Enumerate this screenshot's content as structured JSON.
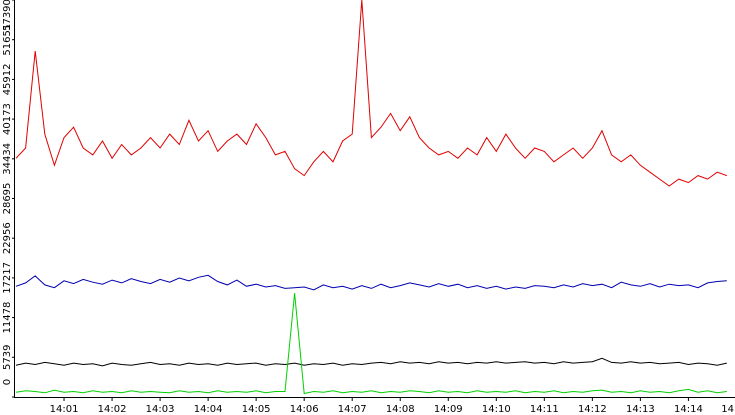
{
  "chart_data": {
    "type": "line",
    "x": [
      0,
      0.2,
      0.4,
      0.6,
      0.8,
      1,
      1.2,
      1.4,
      1.6,
      1.8,
      2,
      2.2,
      2.4,
      2.6,
      2.8,
      3,
      3.2,
      3.4,
      3.6,
      3.8,
      4,
      4.2,
      4.4,
      4.6,
      4.8,
      5,
      5.2,
      5.4,
      5.6,
      5.8,
      6,
      6.2,
      6.4,
      6.6,
      6.8,
      7,
      7.2,
      7.4,
      7.6,
      7.8,
      8,
      8.2,
      8.4,
      8.6,
      8.8,
      9,
      9.2,
      9.4,
      9.6,
      9.8,
      10,
      10.2,
      10.4,
      10.6,
      10.8,
      11,
      11.2,
      11.4,
      11.6,
      11.8,
      12,
      12.2,
      12.4,
      12.6,
      12.8,
      13,
      13.2,
      13.4,
      13.6,
      13.8,
      14,
      14.2,
      14.4,
      14.6,
      14.8
    ],
    "series": [
      {
        "color": "#e00000",
        "values": [
          34500,
          36000,
          50000,
          38000,
          33500,
          37500,
          39000,
          36000,
          35000,
          37000,
          34500,
          36500,
          35000,
          36000,
          37500,
          36000,
          38000,
          36500,
          40000,
          37000,
          38500,
          35500,
          37000,
          38000,
          36500,
          39500,
          37500,
          35000,
          35500,
          33000,
          32000,
          34000,
          35500,
          34000,
          37000,
          38000,
          57390,
          37500,
          39000,
          41000,
          38500,
          40500,
          37500,
          36000,
          35000,
          35500,
          34500,
          36000,
          35000,
          37500,
          35500,
          38000,
          36000,
          34500,
          36000,
          35500,
          34000,
          35000,
          36000,
          34500,
          36000,
          38500,
          35000,
          34000,
          35000,
          33500,
          32500,
          31500,
          30500,
          31500,
          31000,
          32000,
          31500,
          32500,
          32000
        ]
      },
      {
        "color": "#0000b0",
        "values": [
          16000,
          16500,
          17500,
          16200,
          15800,
          16800,
          16400,
          17000,
          16600,
          16300,
          16900,
          16500,
          17100,
          16700,
          16400,
          17000,
          16600,
          17200,
          16800,
          17300,
          17600,
          16700,
          16200,
          16900,
          16000,
          16300,
          15900,
          16100,
          15700,
          15800,
          15900,
          15500,
          16200,
          15800,
          16000,
          15600,
          16100,
          15700,
          16300,
          15800,
          16100,
          16500,
          16200,
          15900,
          16400,
          16000,
          16300,
          15800,
          16100,
          15700,
          16000,
          15600,
          15900,
          15700,
          16100,
          16000,
          15800,
          16200,
          15900,
          16400,
          16100,
          16300,
          15800,
          16600,
          16200,
          16000,
          16400,
          15900,
          16300,
          16100,
          16200,
          15800,
          16500,
          16700,
          16800
        ]
      },
      {
        "color": "#000000",
        "values": [
          4600,
          4900,
          4700,
          5000,
          4800,
          4600,
          4900,
          4700,
          4800,
          4500,
          4900,
          4700,
          4600,
          4800,
          5000,
          4700,
          4800,
          4600,
          4900,
          4700,
          4800,
          4600,
          4900,
          4700,
          4800,
          4900,
          4600,
          4800,
          4700,
          4900,
          4600,
          4800,
          4700,
          4900,
          4600,
          4800,
          4700,
          4900,
          5000,
          4800,
          5100,
          4900,
          5000,
          4800,
          5100,
          4900,
          5000,
          4800,
          5000,
          4900,
          5100,
          4900,
          5000,
          5100,
          4900,
          5000,
          4800,
          5100,
          4900,
          5000,
          5100,
          5600,
          5000,
          4900,
          5100,
          4900,
          5000,
          4800,
          4900,
          5000,
          4700,
          4900,
          4800,
          4600,
          4900
        ]
      },
      {
        "color": "#00d000",
        "values": [
          700,
          900,
          800,
          600,
          1000,
          700,
          800,
          600,
          900,
          700,
          800,
          600,
          900,
          700,
          800,
          700,
          600,
          900,
          700,
          800,
          600,
          900,
          700,
          800,
          700,
          900,
          600,
          800,
          800,
          15000,
          500,
          800,
          700,
          900,
          600,
          800,
          700,
          900,
          600,
          800,
          700,
          900,
          800,
          600,
          900,
          700,
          800,
          600,
          900,
          700,
          800,
          700,
          900,
          600,
          800,
          700,
          900,
          600,
          800,
          700,
          900,
          1000,
          700,
          800,
          600,
          900,
          700,
          800,
          600,
          900,
          1100,
          700,
          900,
          600,
          800
        ]
      }
    ],
    "xlim": [
      0,
      14.97
    ],
    "ylim": [
      0,
      57390
    ],
    "xticks": [
      {
        "value": 1,
        "label": "14:01"
      },
      {
        "value": 2,
        "label": "14:02"
      },
      {
        "value": 3,
        "label": "14:03"
      },
      {
        "value": 4,
        "label": "14:04"
      },
      {
        "value": 5,
        "label": "14:05"
      },
      {
        "value": 6,
        "label": "14:06"
      },
      {
        "value": 7,
        "label": "14:07"
      },
      {
        "value": 8,
        "label": "14:08"
      },
      {
        "value": 9,
        "label": "14:09"
      },
      {
        "value": 10,
        "label": "14:10"
      },
      {
        "value": 11,
        "label": "14:11"
      },
      {
        "value": 12,
        "label": "14:12"
      },
      {
        "value": 13,
        "label": "14:13"
      },
      {
        "value": 14,
        "label": "14:14"
      },
      {
        "value": 15,
        "label": "14"
      }
    ],
    "yticks": [
      0,
      5739,
      11478,
      17217,
      22956,
      28695,
      34434,
      40173,
      45912,
      51651,
      57390
    ]
  }
}
